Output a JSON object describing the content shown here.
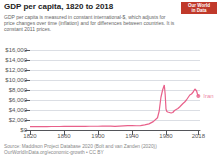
{
  "chart_data": {
    "type": "line",
    "title": "GDP per capita, 1820 to 2018",
    "subtitle": "GDP per capita is measured in constant international-$, which adjusts for\nprice changes over time (inflation) and for differences between countries. It is\nconstant 2011 prices.",
    "x": [
      1820,
      1825,
      1830,
      1835,
      1840,
      1845,
      1850,
      1855,
      1860,
      1865,
      1870,
      1875,
      1880,
      1885,
      1890,
      1895,
      1900,
      1905,
      1910,
      1915,
      1920,
      1925,
      1930,
      1935,
      1940,
      1945,
      1950,
      1955,
      1960,
      1965,
      1970,
      1972,
      1974,
      1976,
      1978,
      1979,
      1980,
      1981,
      1982,
      1984,
      1986,
      1988,
      1990,
      1992,
      1994,
      1996,
      1998,
      2000,
      2002,
      2004,
      2006,
      2008,
      2010,
      2012,
      2014,
      2016,
      2017,
      2018
    ],
    "values": [
      680,
      685,
      690,
      692,
      695,
      698,
      700,
      705,
      710,
      715,
      720,
      728,
      735,
      740,
      745,
      750,
      755,
      770,
      785,
      770,
      740,
      790,
      840,
      860,
      880,
      850,
      890,
      1030,
      1220,
      1680,
      2450,
      3800,
      6500,
      8000,
      9000,
      7200,
      4200,
      3700,
      3600,
      3500,
      3400,
      3500,
      3900,
      4100,
      4300,
      4600,
      4950,
      5300,
      5600,
      6000,
      6500,
      7000,
      7200,
      7600,
      8200,
      7800,
      7200,
      6800
    ],
    "color": "#e8608a",
    "xlim": [
      1820,
      2020
    ],
    "xticks": [
      1820,
      1860,
      1900,
      1940,
      1980,
      2018
    ],
    "ylim": [
      0,
      16000
    ],
    "yticks": [
      {
        "value": 0,
        "label": "$0"
      },
      {
        "value": 2000,
        "label": "$2,000"
      },
      {
        "value": 4000,
        "label": "$4,000"
      },
      {
        "value": 6000,
        "label": "$6,000"
      },
      {
        "value": 8000,
        "label": "$8,000"
      },
      {
        "value": 10000,
        "label": "$10,000"
      },
      {
        "value": 12000,
        "label": "$12,000"
      },
      {
        "value": 14000,
        "label": "$14,000"
      },
      {
        "value": 16000,
        "label": "$16,000"
      }
    ],
    "grid": true,
    "annotations": [
      {
        "text": "Iran",
        "x": 2018,
        "y": 6800
      },
      {
        "text": "Source: Maddison Project Database 2020 (Bolt and van Zanden (2020))"
      },
      {
        "text": "OurWorldInData.org/economic-growth • CC BY"
      },
      {
        "text": "Our World\nin Data",
        "color": "#c0392b"
      }
    ]
  }
}
